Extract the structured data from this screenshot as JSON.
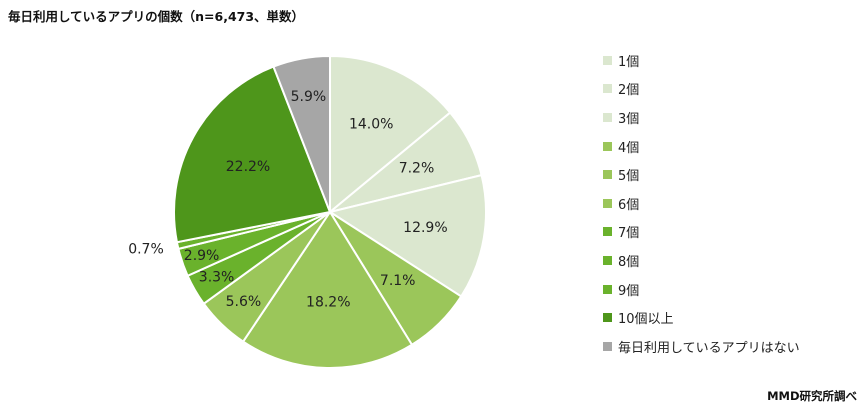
{
  "chart_title": "毎日利用しているアプリの個数（n=6,473、単数）",
  "source": "MMD研究所調べ",
  "chart_data": {
    "type": "pie",
    "categories": [
      "1個",
      "2個",
      "3個",
      "4個",
      "5個",
      "6個",
      "7個",
      "8個",
      "9個",
      "10個以上",
      "毎日利用しているアプリはない"
    ],
    "values": [
      14.0,
      7.2,
      12.9,
      7.1,
      18.2,
      5.6,
      3.3,
      2.9,
      0.7,
      22.2,
      5.9
    ],
    "value_labels": [
      "14.0%",
      "7.2%",
      "12.9%",
      "7.1%",
      "18.2%",
      "5.6%",
      "3.3%",
      "2.9%",
      "0.7%",
      "22.2%",
      "5.9%"
    ],
    "colors": [
      "#dbe7cf",
      "#dbe7cf",
      "#dbe7cf",
      "#9bc65a",
      "#9bc65a",
      "#9bc65a",
      "#6ab22c",
      "#6ab22c",
      "#6ab22c",
      "#4e961b",
      "#a6a6a6"
    ],
    "legend_position": "right",
    "start": "12 o'clock, clockwise"
  }
}
